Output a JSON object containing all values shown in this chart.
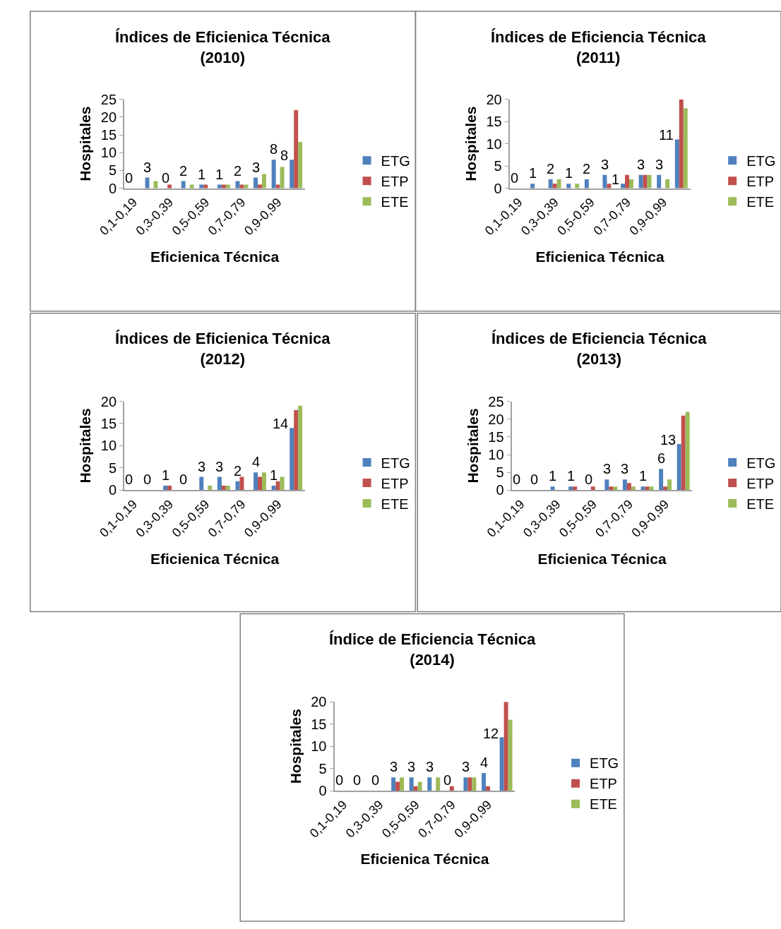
{
  "chart_data": [
    {
      "type": "bar",
      "title": "Índices de Eficienica Técnica\n(2010)",
      "xlabel": "Eficienica Técnica",
      "ylabel": "Hospitales",
      "categories": [
        "0,1-0,19",
        null,
        "0,3-0,39",
        null,
        "0,5-0,59",
        null,
        "0,7-0,79",
        null,
        "0,9-0,99",
        null
      ],
      "series": [
        {
          "name": "ETG",
          "color": "#4f81bd",
          "values": [
            0,
            3,
            0,
            2,
            1,
            1,
            2,
            3,
            8,
            8
          ],
          "value_labels": [
            "0",
            "3",
            "0",
            "2",
            "1",
            "1",
            "2",
            "3",
            "8",
            "8"
          ]
        },
        {
          "name": "ETP",
          "color": "#c0504d",
          "values": [
            0,
            0,
            1,
            0,
            1,
            1,
            1,
            1,
            1,
            22
          ]
        },
        {
          "name": "ETE",
          "color": "#9bbb59",
          "values": [
            0,
            2,
            0,
            1,
            0,
            1,
            1,
            4,
            6,
            13
          ]
        }
      ],
      "ylim": [
        0,
        25
      ],
      "yticks": [
        0,
        5,
        10,
        15,
        20,
        25
      ],
      "legend": "right"
    },
    {
      "type": "bar",
      "title": "Índices de Eficiencia Técnica\n(2011)",
      "xlabel": "Eficienica Técnica",
      "ylabel": "Hospitales",
      "categories": [
        "0,1-0,19",
        null,
        "0,3-0,39",
        null,
        "0,5-0,59",
        null,
        "0,7-0,79",
        null,
        "0,9-0,99",
        null
      ],
      "series": [
        {
          "name": "ETG",
          "color": "#4f81bd",
          "values": [
            0,
            1,
            2,
            1,
            2,
            3,
            1,
            3,
            3,
            11
          ],
          "value_labels": [
            "0",
            "1",
            "2",
            "1",
            "2",
            "3",
            "1",
            "3",
            "3",
            "11"
          ]
        },
        {
          "name": "ETP",
          "color": "#c0504d",
          "values": [
            0,
            0,
            1,
            0,
            0,
            1,
            3,
            3,
            0,
            20
          ]
        },
        {
          "name": "ETE",
          "color": "#9bbb59",
          "values": [
            0,
            0,
            2,
            1,
            0,
            0,
            2,
            3,
            2,
            18
          ]
        }
      ],
      "ylim": [
        0,
        20
      ],
      "yticks": [
        0,
        5,
        10,
        15,
        20
      ],
      "legend": "right"
    },
    {
      "type": "bar",
      "title": "Índices de Eficienica Técnica\n(2012)",
      "xlabel": "Eficienica Técnica",
      "ylabel": "Hospitales",
      "categories": [
        "0,1-0,19",
        null,
        "0,3-0,39",
        null,
        "0,5-0,59",
        null,
        "0,7-0,79",
        null,
        "0,9-0,99",
        null
      ],
      "series": [
        {
          "name": "ETG",
          "color": "#4f81bd",
          "values": [
            0,
            0,
            1,
            0,
            3,
            3,
            2,
            4,
            1,
            14
          ],
          "value_labels": [
            "0",
            "0",
            "1",
            "0",
            "3",
            "3",
            "2",
            "4",
            "1",
            "14"
          ]
        },
        {
          "name": "ETP",
          "color": "#c0504d",
          "values": [
            0,
            0,
            1,
            0,
            0,
            1,
            3,
            3,
            2,
            18
          ]
        },
        {
          "name": "ETE",
          "color": "#9bbb59",
          "values": [
            0,
            0,
            0,
            0,
            1,
            1,
            0,
            4,
            3,
            19
          ]
        }
      ],
      "ylim": [
        0,
        20
      ],
      "yticks": [
        0,
        5,
        10,
        15,
        20
      ],
      "legend": "right"
    },
    {
      "type": "bar",
      "title": "Índices de Eficiencia Técnica\n(2013)",
      "xlabel": "Eficienica Técnica",
      "ylabel": "Hospitales",
      "categories": [
        "0,1-0,19",
        null,
        "0,3-0,39",
        null,
        "0,5-0,59",
        null,
        "0,7-0,79",
        null,
        "0,9-0,99",
        null
      ],
      "series": [
        {
          "name": "ETG",
          "color": "#4f81bd",
          "values": [
            0,
            0,
            1,
            1,
            0,
            3,
            3,
            1,
            6,
            13
          ],
          "value_labels": [
            "0",
            "0",
            "1",
            "1",
            "0",
            "3",
            "3",
            "1",
            "6",
            "13"
          ]
        },
        {
          "name": "ETP",
          "color": "#c0504d",
          "values": [
            0,
            0,
            0,
            1,
            1,
            1,
            2,
            1,
            1,
            21
          ]
        },
        {
          "name": "ETE",
          "color": "#9bbb59",
          "values": [
            0,
            0,
            0,
            0,
            0,
            1,
            1,
            1,
            3,
            22
          ]
        }
      ],
      "ylim": [
        0,
        25
      ],
      "yticks": [
        0,
        5,
        10,
        15,
        20,
        25
      ],
      "legend": "right"
    },
    {
      "type": "bar",
      "title": "Índice de Eficiencia Técnica\n(2014)",
      "xlabel": "Eficienica Técnica",
      "ylabel": "Hospitales",
      "categories": [
        "0,1-0,19",
        null,
        "0,3-0,39",
        null,
        "0,5-0,59",
        null,
        "0,7-0,79",
        null,
        "0,9-0,99",
        null
      ],
      "series": [
        {
          "name": "ETG",
          "color": "#4f81bd",
          "values": [
            0,
            0,
            0,
            3,
            3,
            3,
            0,
            3,
            4,
            12
          ],
          "value_labels": [
            "0",
            "0",
            "0",
            "3",
            "3",
            "3",
            "0",
            "3",
            "4",
            "12"
          ]
        },
        {
          "name": "ETP",
          "color": "#c0504d",
          "values": [
            0,
            0,
            0,
            2,
            1,
            0,
            1,
            3,
            1,
            20
          ]
        },
        {
          "name": "ETE",
          "color": "#9bbb59",
          "values": [
            0,
            0,
            0,
            3,
            2,
            3,
            0,
            3,
            0,
            16
          ]
        }
      ],
      "ylim": [
        0,
        20
      ],
      "yticks": [
        0,
        5,
        10,
        15,
        20
      ],
      "legend": "right"
    }
  ]
}
